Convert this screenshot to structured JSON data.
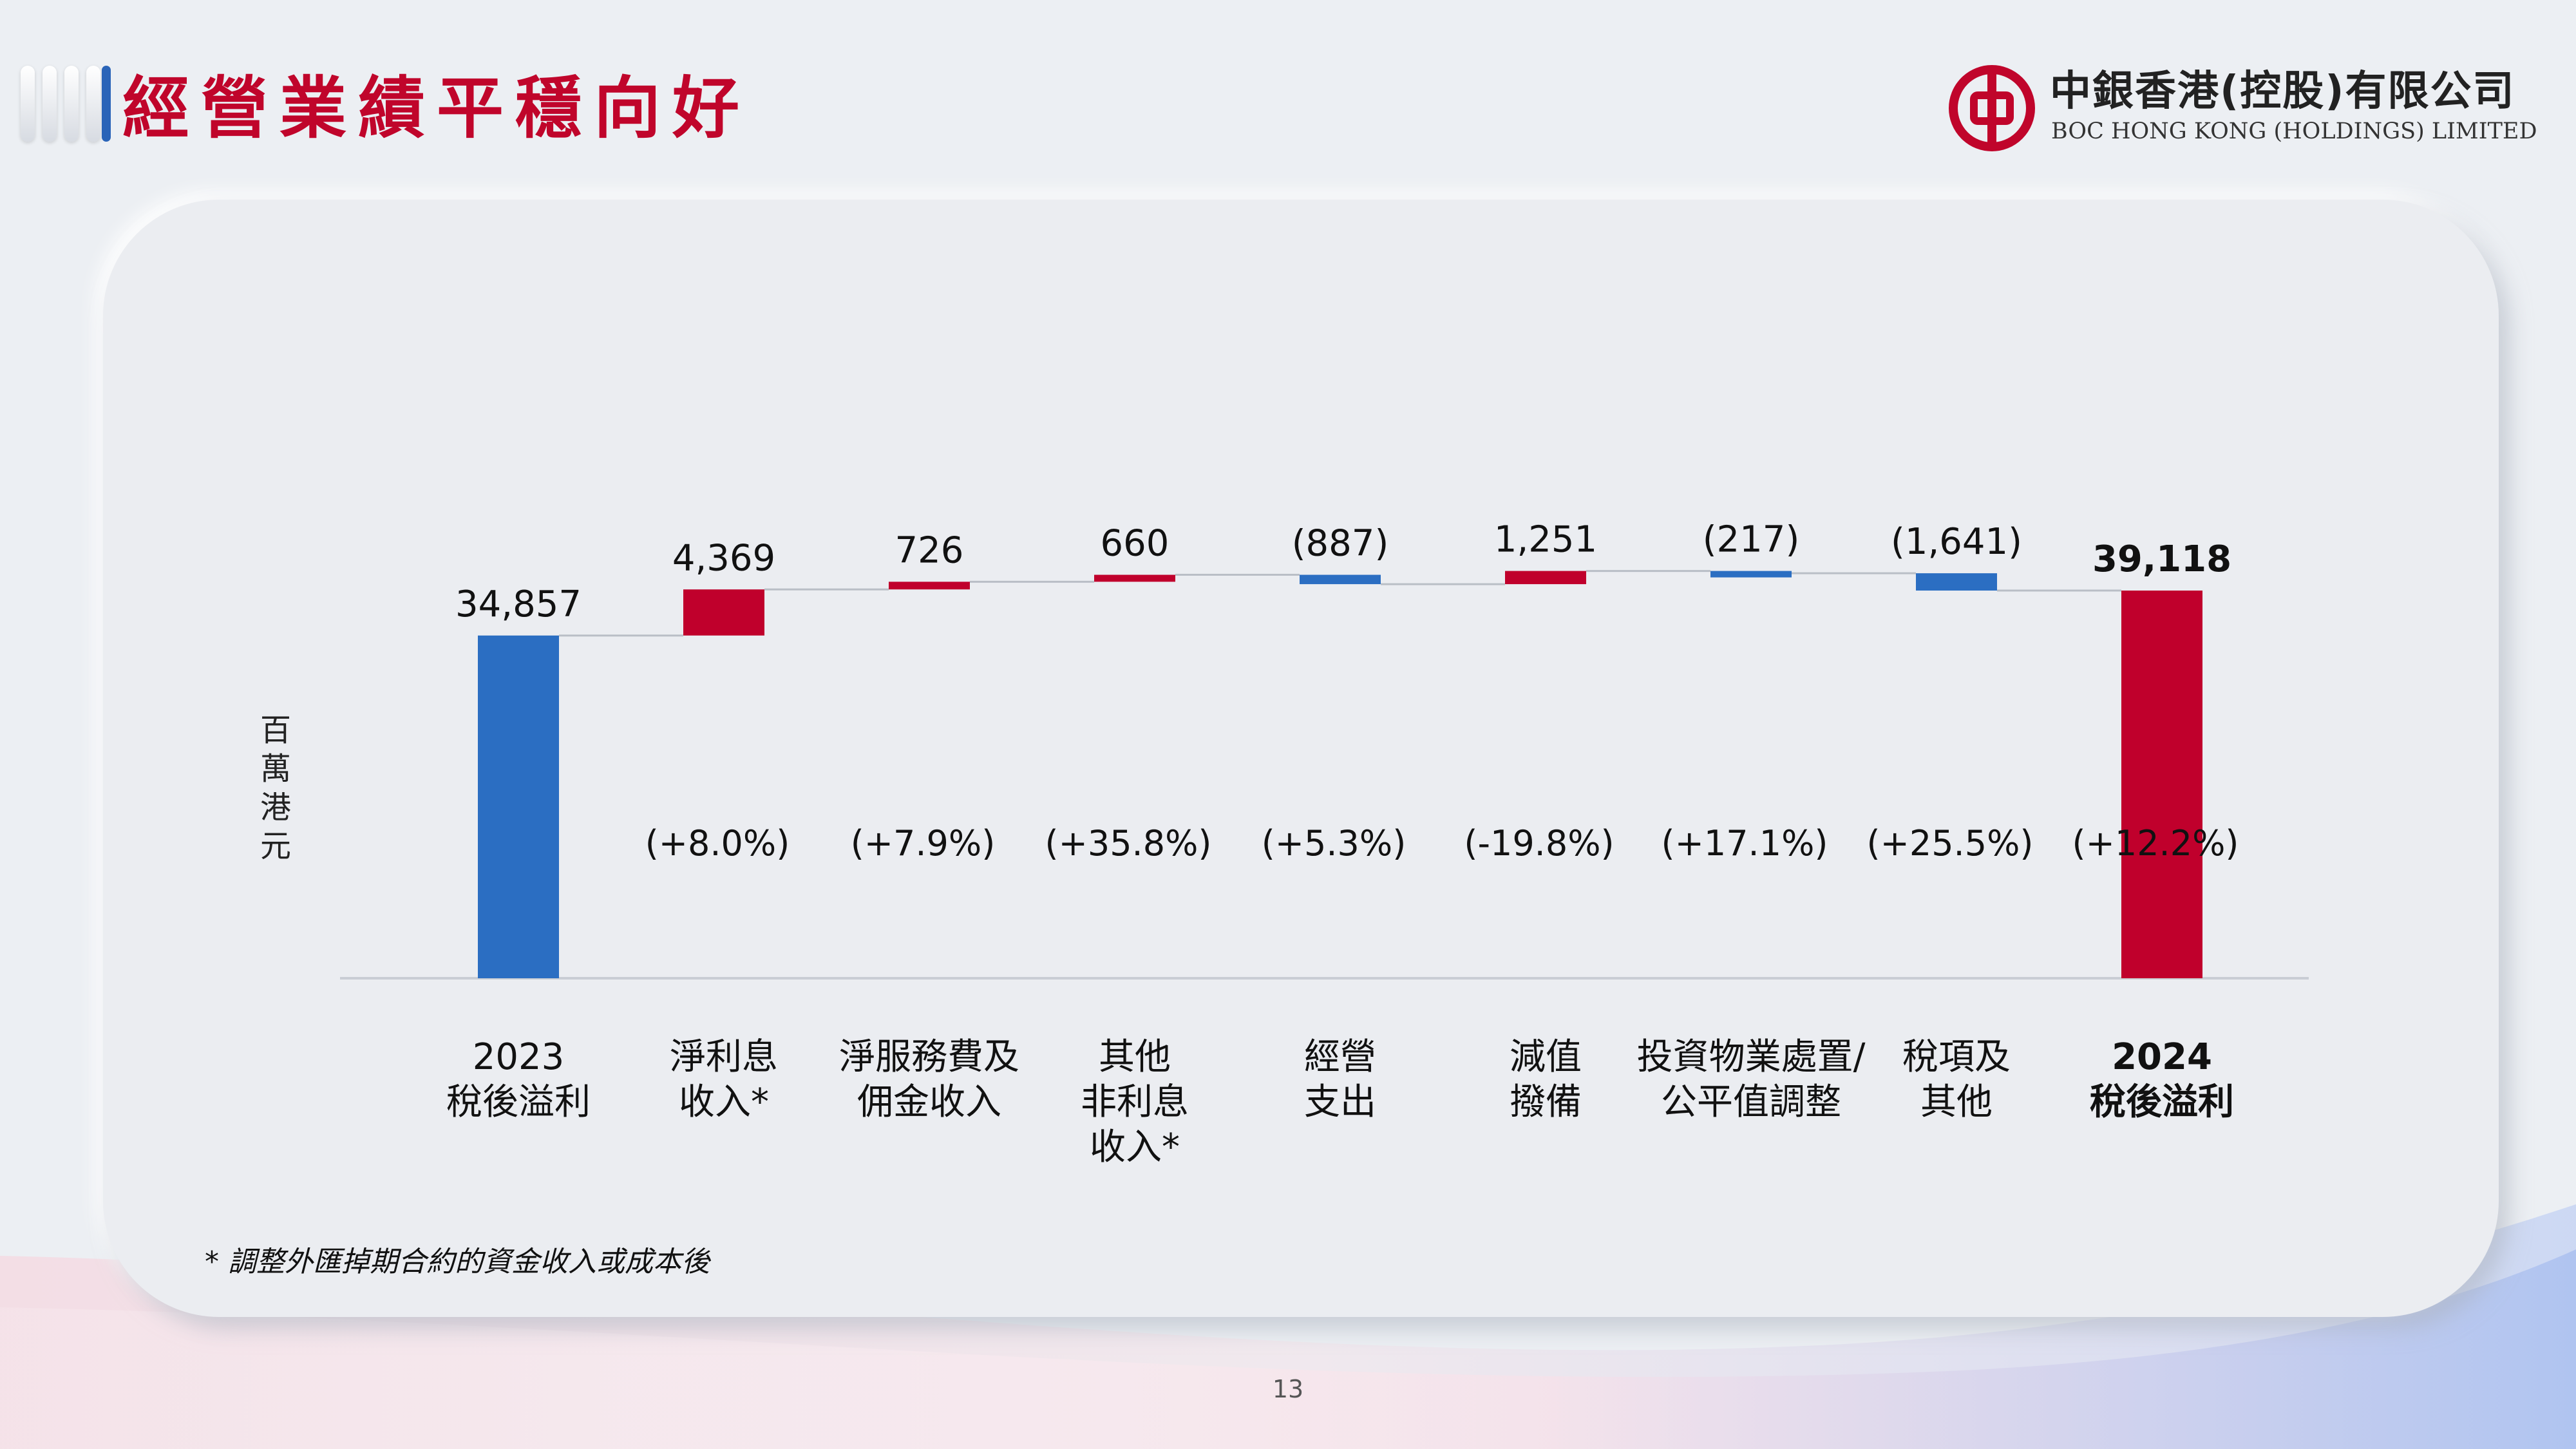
{
  "header": {
    "title": "經營業績平穩向好",
    "logo_cn": "中銀香港(控股)有限公司",
    "logo_en": "BOC HONG KONG (HOLDINGS) LIMITED"
  },
  "colors": {
    "up": "#c0002c",
    "down": "#2b6ec2",
    "connector": "#b9bec6",
    "accent": "#c0052b"
  },
  "chart_data": {
    "type": "bar",
    "subtype": "waterfall",
    "ylabel": "百萬港元",
    "categories": [
      [
        "2023",
        "稅後溢利"
      ],
      [
        "淨利息",
        "收入*"
      ],
      [
        "淨服務費及",
        "佣金收入"
      ],
      [
        "其他",
        "非利息",
        "收入*"
      ],
      [
        "經營",
        "支出"
      ],
      [
        "減值",
        "撥備"
      ],
      [
        "投資物業處置/",
        "公平值調整"
      ],
      [
        "稅項及",
        "其他"
      ],
      [
        "2024",
        "稅後溢利"
      ]
    ],
    "values": [
      34857,
      4369,
      726,
      660,
      -887,
      1251,
      -217,
      -1641,
      39118
    ],
    "value_labels": [
      "34,857",
      "4,369",
      "726",
      "660",
      "(887)",
      "1,251",
      "(217)",
      "(1,641)",
      "39,118"
    ],
    "change_labels": [
      "",
      "(+8.0%)",
      "(+7.9%)",
      "(+35.8%)",
      "(+5.3%)",
      "(-19.8%)",
      "(+17.1%)",
      "(+25.5%)",
      "(+12.2%)"
    ],
    "bar_colors": [
      "blue",
      "red",
      "red",
      "red",
      "blue",
      "red",
      "blue",
      "blue",
      "red"
    ],
    "bold_last": true
  },
  "footnote": "* 調整外匯掉期合約的資金收入或成本後",
  "page_number": "13"
}
